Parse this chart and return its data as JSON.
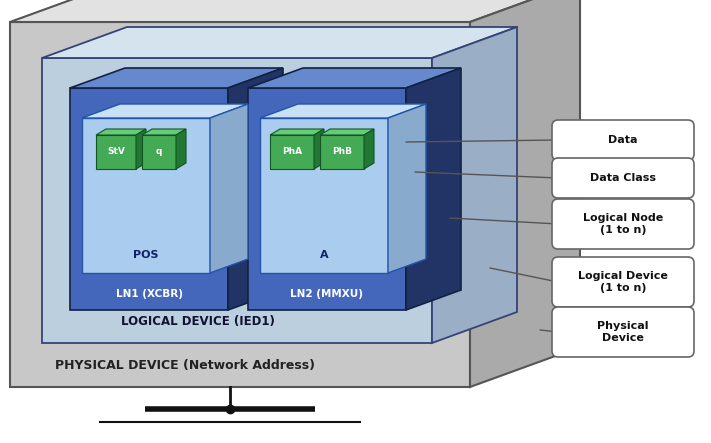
{
  "bg_color": "#ffffff",
  "physical_device_label": "PHYSICAL DEVICE (Network Address)",
  "logical_device_label": "LOGICAL DEVICE (IED1)",
  "ln1_label": "LN1 (XCBR)",
  "ln1_dc_label": "POS",
  "ln1_data": [
    "StV",
    "q"
  ],
  "ln2_label": "LN2 (MMXU)",
  "ln2_dc_label": "A",
  "ln2_data": [
    "PhA",
    "PhB"
  ],
  "ann_labels": [
    "Data",
    "Data Class",
    "Logical Node\n(1 to n)",
    "Logical Device\n(1 to n)",
    "Physical\nDevice"
  ],
  "ann_y": [
    140,
    178,
    224,
    282,
    332
  ],
  "colors": {
    "pd_face": "#c8c8c8",
    "pd_top": "#e2e2e2",
    "pd_right": "#aaaaaa",
    "pd_edge": "#555555",
    "ld_face": "#bccfdf",
    "ld_top": "#d5e3ef",
    "ld_right": "#9aafc5",
    "ld_edge": "#334477",
    "ln_face": "#4466bb",
    "ln_top": "#6688cc",
    "ln_right": "#223366",
    "ln_edge": "#112244",
    "dc_face": "#aaccee",
    "dc_top": "#c8dff5",
    "dc_right": "#88aacc",
    "dc_edge": "#2255aa",
    "data_face": "#44aa55",
    "data_top": "#66cc77",
    "data_right": "#227733",
    "data_edge": "#115522",
    "ann_fill": "#ffffff",
    "ann_edge": "#666666",
    "line_color": "#555555"
  }
}
